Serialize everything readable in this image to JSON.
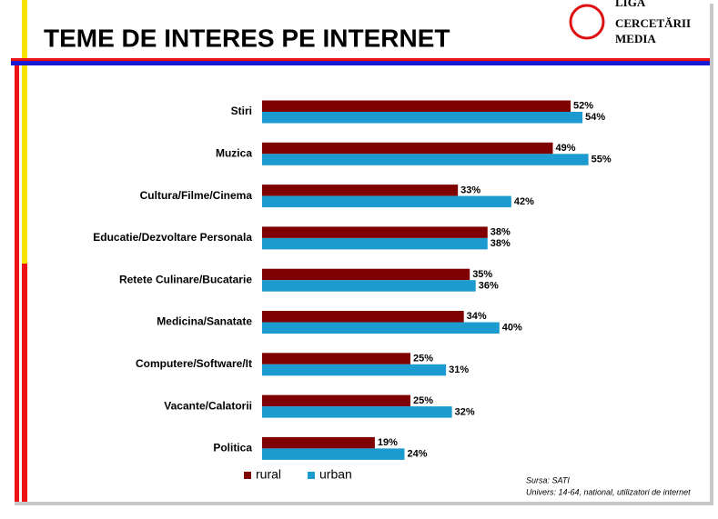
{
  "chart_data": {
    "type": "hbar",
    "title": "TEME DE INTERES PE INTERNET",
    "categories": [
      "Stiri",
      "Muzica",
      "Cultura/Filme/Cinema",
      "Educatie/Dezvoltare Personala",
      "Retete Culinare/Bucatarie",
      "Medicina/Sanatate",
      "Computere/Software/It",
      "Vacante/Calatorii",
      "Politica"
    ],
    "series": [
      {
        "name": "rural",
        "color": "#7f0000",
        "values": [
          52,
          49,
          33,
          38,
          35,
          34,
          25,
          25,
          19
        ],
        "value_labels": [
          "52%",
          "49%",
          "33%",
          "38%",
          "35%",
          "34%",
          "25%",
          "25%",
          "19%"
        ]
      },
      {
        "name": "urban",
        "color": "#1b9bd0",
        "values": [
          54,
          55,
          42,
          38,
          36,
          40,
          31,
          32,
          24
        ],
        "value_labels": [
          "54%",
          "55%",
          "42%",
          "38%",
          "36%",
          "40%",
          "31%",
          "32%",
          "24%"
        ]
      }
    ],
    "legend": "bottom"
  },
  "logo": {
    "lines": [
      "LIGA",
      "CERCETĂRII",
      "MEDIA"
    ]
  },
  "source": [
    "Sursa: SATI",
    "Univers: 14-64, national, utilizatori de internet"
  ]
}
